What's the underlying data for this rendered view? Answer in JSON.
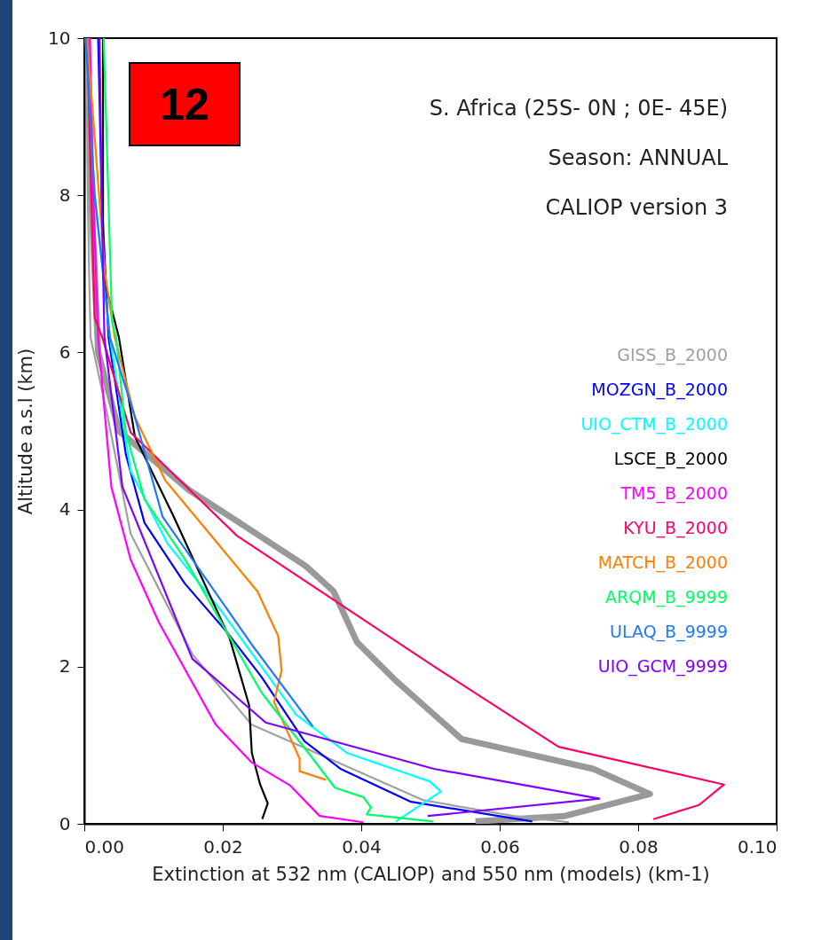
{
  "chart_data": {
    "type": "line",
    "xlabel": "Extinction at 532 nm (CALIOP) and 550 nm (models) (km-1)",
    "ylabel": "Altitude a.s.l (km)",
    "annotations": [
      "12",
      "S. Africa (25S- 0N ; 0E- 45E)",
      "Season: ANNUAL",
      "CALIOP version 3"
    ],
    "xlim": [
      0,
      0.1
    ],
    "xticks": [
      {
        "value": 0,
        "label": "0.00"
      },
      {
        "value": 0.02,
        "label": "0.02"
      },
      {
        "value": 0.04,
        "label": "0.04"
      },
      {
        "value": 0.06,
        "label": "0.06"
      },
      {
        "value": 0.08,
        "label": "0.08"
      },
      {
        "value": 0.1,
        "label": "0.10"
      }
    ],
    "ylim": [
      0,
      10
    ],
    "yticks": [
      0,
      2,
      4,
      6,
      8,
      10
    ],
    "legend": "right",
    "series": [
      {
        "color": "#999999",
        "x": [
          0.0005,
          0.001,
          0.002,
          0.005,
          0.0151,
          0.0221,
          0.032,
          0.036,
          0.0394,
          0.0449,
          0.0495,
          0.0545,
          0.0735,
          0.0817,
          0.0694,
          0.0565
        ],
        "values": [
          10,
          8,
          6,
          5,
          4.25,
          3.85,
          3.28,
          2.96,
          2.31,
          1.83,
          1.47,
          1.08,
          0.7,
          0.38,
          0.1,
          0.03
        ]
      },
      {
        "name": "GISS_B_2000",
        "color": "#a0a0a0",
        "x": [
          0.0003,
          0.0005,
          0.0007,
          0.0009,
          0.0032,
          0.0067,
          0.0156,
          0.0242,
          0.0367,
          0.049,
          0.062,
          0.07
        ],
        "values": [
          10,
          8,
          7,
          6.19,
          5.26,
          3.69,
          2.16,
          1.26,
          0.78,
          0.3,
          0.1,
          0.02
        ]
      },
      {
        "name": "MOZGN_B_2000",
        "color": "#0000ff",
        "x": [
          0.002,
          0.0025,
          0.0035,
          0.006,
          0.0087,
          0.0145,
          0.0206,
          0.0256,
          0.0318,
          0.037,
          0.0472,
          0.0647
        ],
        "values": [
          10,
          8,
          6.19,
          4.7,
          3.83,
          3.06,
          2.44,
          1.87,
          1.05,
          0.7,
          0.28,
          0.03
        ]
      },
      {
        "name": "UIO_CTM_B_2000",
        "color": "#00ffff",
        "x": [
          0.0002,
          0.0015,
          0.0037,
          0.0067,
          0.012,
          0.0197,
          0.0306,
          0.038,
          0.0499,
          0.0515,
          0.045
        ],
        "values": [
          10,
          8,
          6.19,
          4.49,
          3.57,
          2.72,
          1.39,
          0.9,
          0.54,
          0.41,
          0.03
        ]
      },
      {
        "name": "LSCE_B_2000",
        "color": "#000000",
        "x": [
          0.0027,
          0.0027,
          0.005,
          0.0073,
          0.0128,
          0.021,
          0.0238,
          0.0242,
          0.0254,
          0.0265,
          0.0257
        ],
        "values": [
          10,
          6.98,
          6.19,
          4.93,
          3.93,
          2.36,
          1.51,
          0.9,
          0.5,
          0.26,
          0.06
        ]
      },
      {
        "name": "TM5_B_2000",
        "color": "#ff00ff",
        "x": [
          0.0008,
          0.0013,
          0.002,
          0.0028,
          0.0039,
          0.0067,
          0.0108,
          0.019,
          0.0242,
          0.0297,
          0.034,
          0.0403
        ],
        "values": [
          10,
          8,
          6.19,
          5.38,
          4.29,
          3.36,
          2.56,
          1.26,
          0.78,
          0.49,
          0.1,
          0.02
        ]
      },
      {
        "name": "KYU_B_2000",
        "color": "#ff0066",
        "x": [
          0.0004,
          0.0015,
          0.0026,
          0.0067,
          0.022,
          0.0504,
          0.0685,
          0.0924,
          0.0888,
          0.0822
        ],
        "values": [
          10,
          6.44,
          6.19,
          4.98,
          3.67,
          2.01,
          0.98,
          0.5,
          0.24,
          0.06
        ]
      },
      {
        "name": "MATCH_B_2000",
        "color": "#ff7f00",
        "x": [
          0.0004,
          0.003,
          0.0044,
          0.0073,
          0.0117,
          0.025,
          0.028,
          0.0285,
          0.0274,
          0.0311,
          0.0311,
          0.0349
        ],
        "values": [
          10,
          7,
          6.19,
          5.18,
          4.37,
          2.96,
          2.39,
          1.95,
          1.55,
          0.83,
          0.67,
          0.56
        ]
      },
      {
        "name": "ARQM_B_9999",
        "color": "#00ff66",
        "x": [
          0.0028,
          0.004,
          0.0046,
          0.006,
          0.0087,
          0.0146,
          0.0256,
          0.033,
          0.0362,
          0.0403,
          0.0414,
          0.0408,
          0.0504
        ],
        "values": [
          10,
          6.4,
          6.19,
          4.98,
          4.13,
          3.36,
          1.67,
          0.83,
          0.46,
          0.34,
          0.21,
          0.12,
          0.03
        ]
      },
      {
        "name": "ULAQ_B_9999",
        "color": "#1e78ff",
        "x": [
          0.0002,
          0.0015,
          0.0037,
          0.0072,
          0.0113,
          0.0242,
          0.033
        ],
        "values": [
          10,
          8,
          6.19,
          5.21,
          3.91,
          2.28,
          1.24
        ]
      },
      {
        "name": "UIO_GCM_9999",
        "color": "#7f00ff",
        "x": [
          0.0022,
          0.0025,
          0.0029,
          0.0055,
          0.0156,
          0.0262,
          0.0505,
          0.0744,
          0.0496
        ],
        "values": [
          10,
          8,
          6.19,
          4.29,
          2.1,
          1.29,
          0.7,
          0.32,
          0.1
        ]
      }
    ]
  }
}
